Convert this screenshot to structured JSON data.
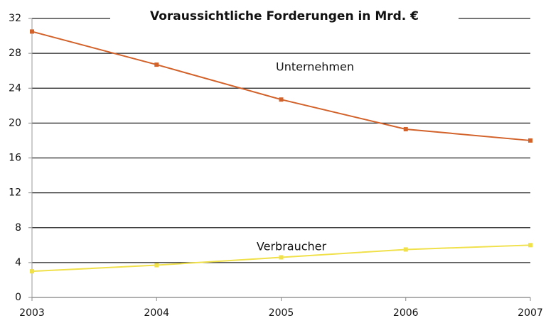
{
  "chart_data": {
    "type": "line",
    "title": "Voraussichtliche Forderungen in Mrd. €",
    "x": [
      2003,
      2004,
      2005,
      2006,
      2007
    ],
    "xlim": [
      2003,
      2007
    ],
    "xticks": [
      2003,
      2004,
      2005,
      2006,
      2007
    ],
    "ylim": [
      0,
      32
    ],
    "yticks": [
      0,
      4,
      8,
      12,
      16,
      20,
      24,
      28,
      32
    ],
    "grid": true,
    "series": [
      {
        "name": "Unternehmen",
        "color": "#d2622a",
        "values": [
          30.5,
          26.7,
          22.7,
          19.3,
          18.0
        ]
      },
      {
        "name": "Verbraucher",
        "color": "#f0e04a",
        "values": [
          3.0,
          3.7,
          4.6,
          5.5,
          6.0
        ]
      }
    ]
  }
}
